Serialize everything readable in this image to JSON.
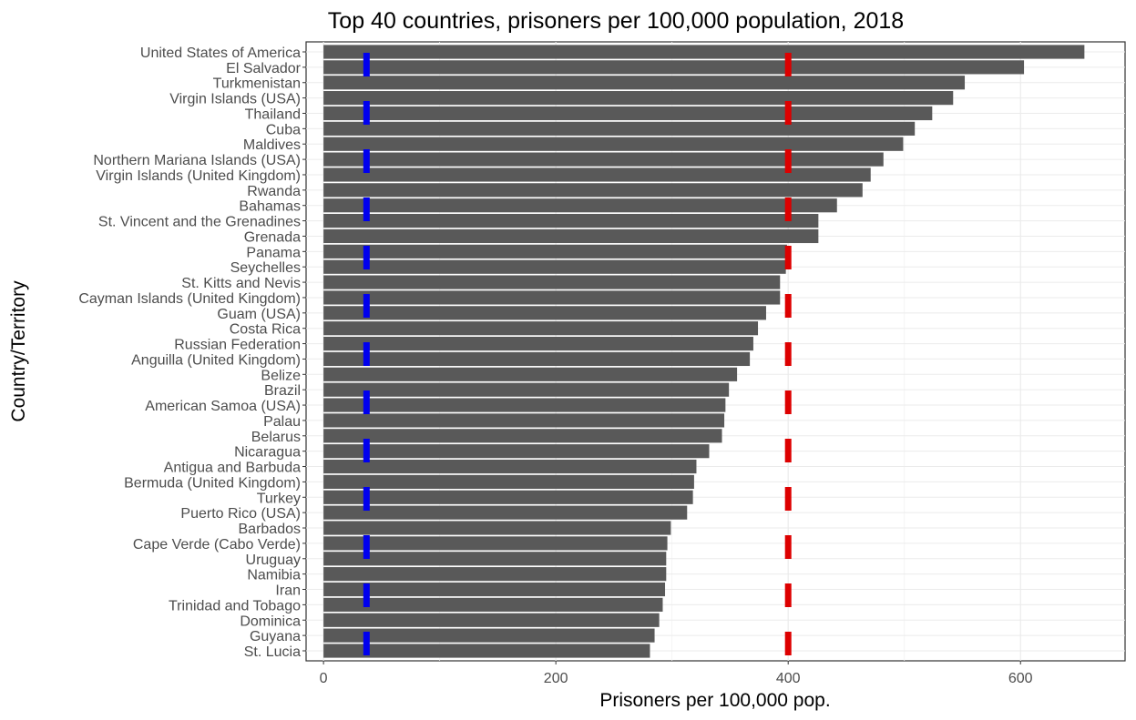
{
  "chart_data": {
    "type": "bar",
    "orientation": "horizontal",
    "title": "Top 40 countries, prisoners per 100,000 population, 2018",
    "xlabel": "Prisoners per 100,000 pop.",
    "ylabel": "Country/Territory",
    "xlim": [
      -15,
      690
    ],
    "xticks": [
      0,
      200,
      400,
      600
    ],
    "grid": true,
    "legend": "none",
    "bar_color": "#595959",
    "categories": [
      "United States of America",
      "El Salvador",
      "Turkmenistan",
      "Virgin Islands (USA)",
      "Thailand",
      "Cuba",
      "Maldives",
      "Northern Mariana Islands (USA)",
      "Virgin Islands (United Kingdom)",
      "Rwanda",
      "Bahamas",
      "St. Vincent and the Grenadines",
      "Grenada",
      "Panama",
      "Seychelles",
      "St. Kitts and Nevis",
      "Cayman Islands (United Kingdom)",
      "Guam (USA)",
      "Costa Rica",
      "Russian Federation",
      "Anguilla (United Kingdom)",
      "Belize",
      "Brazil",
      "American Samoa (USA)",
      "Palau",
      "Belarus",
      "Nicaragua",
      "Antigua and Barbuda",
      "Bermuda (United Kingdom)",
      "Turkey",
      "Puerto Rico (USA)",
      "Barbados",
      "Cape Verde (Cabo Verde)",
      "Uruguay",
      "Namibia",
      "Iran",
      "Trinidad and Tobago ",
      "Dominica",
      "Guyana",
      "St. Lucia"
    ],
    "values": [
      655,
      603,
      552,
      542,
      524,
      509,
      499,
      482,
      471,
      464,
      442,
      426,
      426,
      399,
      398,
      393,
      393,
      381,
      374,
      370,
      367,
      356,
      349,
      346,
      345,
      343,
      332,
      321,
      319,
      318,
      313,
      299,
      296,
      295,
      295,
      294,
      292,
      289,
      285,
      281
    ],
    "reference_lines": [
      {
        "x": 37,
        "style": "dashed",
        "color": "#0000ee"
      },
      {
        "x": 400,
        "style": "dashed",
        "color": "#dd0000"
      }
    ]
  }
}
